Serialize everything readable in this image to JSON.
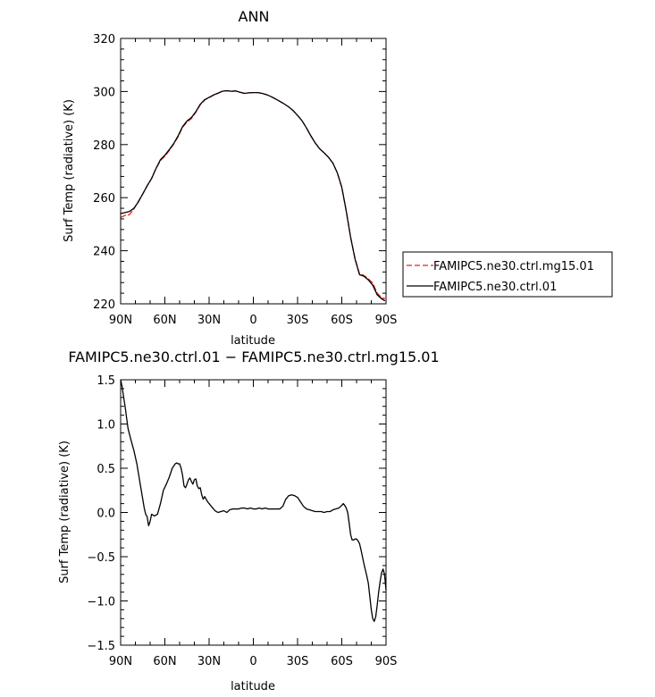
{
  "chart_data": [
    {
      "type": "line",
      "title": "ANN",
      "xlabel": "latitude",
      "ylabel": "Surf Temp (radiative) (K)",
      "xlim": [
        90,
        -90
      ],
      "ylim": [
        220,
        320
      ],
      "xticks": [
        90,
        60,
        30,
        0,
        -30,
        -60,
        -90
      ],
      "xticklabels": [
        "90N",
        "60N",
        "30N",
        "0",
        "30S",
        "60S",
        "90S"
      ],
      "yticks": [
        220,
        240,
        260,
        280,
        300,
        320
      ],
      "yticklabels": [
        "220",
        "240",
        "260",
        "280",
        "300",
        "320"
      ],
      "legend_position": "right",
      "series": [
        {
          "name": "FAMIPC5.ne30.ctrl.mg15.01",
          "color": "#e8201e",
          "dash": "dashed",
          "x": [
            90,
            87,
            84,
            81,
            78,
            75,
            72,
            69,
            66,
            63,
            60,
            57,
            54,
            51,
            48,
            45,
            42,
            39,
            36,
            33,
            30,
            27,
            24,
            21,
            18,
            15,
            12,
            9,
            6,
            3,
            0,
            -3,
            -6,
            -9,
            -12,
            -15,
            -18,
            -21,
            -24,
            -27,
            -30,
            -33,
            -36,
            -39,
            -42,
            -45,
            -48,
            -51,
            -54,
            -57,
            -60,
            -63,
            -66,
            -69,
            -72,
            -75,
            -78,
            -81,
            -84,
            -87,
            -89
          ],
          "y": [
            252.5,
            253.3,
            253.6,
            255.8,
            258.6,
            261.4,
            264.4,
            267.3,
            271.0,
            274.0,
            275.6,
            277.8,
            280.2,
            283.0,
            286.5,
            288.5,
            289.8,
            292.2,
            295.0,
            296.8,
            297.7,
            298.6,
            299.3,
            300.1,
            300.3,
            300.1,
            300.2,
            299.7,
            299.3,
            299.5,
            299.6,
            299.6,
            299.3,
            298.8,
            298.1,
            297.2,
            296.3,
            295.3,
            294.2,
            292.8,
            291.0,
            289.0,
            286.3,
            283.3,
            280.6,
            278.4,
            276.9,
            275.2,
            273.0,
            269.3,
            263.8,
            255.0,
            245.1,
            237.0,
            231.3,
            230.7,
            229.4,
            227.8,
            224.0,
            222.3,
            222.0
          ]
        },
        {
          "name": "FAMIPC5.ne30.ctrl.01",
          "color": "#000000",
          "dash": "solid",
          "x": [
            90,
            87,
            84,
            81,
            78,
            75,
            72,
            69,
            66,
            63,
            60,
            57,
            54,
            51,
            48,
            45,
            42,
            39,
            36,
            33,
            30,
            27,
            24,
            21,
            18,
            15,
            12,
            9,
            6,
            3,
            0,
            -3,
            -6,
            -9,
            -12,
            -15,
            -18,
            -21,
            -24,
            -27,
            -30,
            -33,
            -36,
            -39,
            -42,
            -45,
            -48,
            -51,
            -54,
            -57,
            -60,
            -63,
            -66,
            -69,
            -72,
            -75,
            -78,
            -81,
            -84,
            -87,
            -89
          ],
          "y": [
            254.0,
            254.4,
            254.8,
            256.0,
            258.4,
            261.4,
            264.5,
            267.2,
            271.0,
            274.3,
            276.0,
            278.1,
            280.4,
            283.3,
            286.8,
            288.9,
            290.2,
            292.4,
            295.2,
            296.9,
            297.8,
            298.7,
            299.4,
            300.1,
            300.3,
            300.1,
            300.2,
            299.7,
            299.3,
            299.5,
            299.6,
            299.6,
            299.3,
            298.8,
            298.1,
            297.2,
            296.3,
            295.3,
            294.2,
            292.8,
            291.0,
            289.0,
            286.3,
            283.3,
            280.6,
            278.4,
            276.9,
            275.2,
            273.0,
            269.3,
            263.9,
            255.0,
            245.0,
            236.8,
            231.0,
            230.4,
            229.0,
            227.0,
            223.4,
            221.9,
            221.2
          ]
        }
      ]
    },
    {
      "type": "line",
      "title": "FAMIPC5.ne30.ctrl.01 − FAMIPC5.ne30.ctrl.mg15.01",
      "xlabel": "latitude",
      "ylabel": "Surf Temp (radiative) (K)",
      "xlim": [
        90,
        -90
      ],
      "ylim": [
        -1.5,
        1.5
      ],
      "xticks": [
        90,
        60,
        30,
        0,
        -30,
        -60,
        -90
      ],
      "xticklabels": [
        "90N",
        "60N",
        "30N",
        "0",
        "30S",
        "60S",
        "90S"
      ],
      "yticks": [
        1.5,
        1.0,
        0.5,
        0.0,
        -0.5,
        -1.0,
        -1.5
      ],
      "yticklabels": [
        "1.5",
        "1.0",
        "0.5",
        "0.0",
        "−0.5",
        "−1.0",
        "−1.5"
      ],
      "series": [
        {
          "color": "#000000",
          "dash": "solid",
          "x": [
            90,
            89,
            87,
            85,
            83,
            81,
            79,
            78,
            77,
            76,
            75,
            74,
            73,
            72,
            71,
            70,
            69,
            68,
            67,
            65,
            63,
            61,
            59,
            57,
            55,
            53,
            52,
            51,
            50,
            49,
            48,
            47,
            46,
            45,
            44,
            43,
            42,
            41,
            40,
            39,
            38,
            37,
            36,
            35,
            34,
            33,
            32,
            31,
            30,
            28,
            26,
            24,
            22,
            20,
            18,
            16,
            14,
            12,
            10,
            8,
            6,
            4,
            2,
            0,
            -2,
            -4,
            -6,
            -8,
            -10,
            -12,
            -14,
            -16,
            -18,
            -20,
            -22,
            -24,
            -26,
            -28,
            -30,
            -32,
            -34,
            -36,
            -38,
            -40,
            -42,
            -44,
            -46,
            -48,
            -50,
            -52,
            -54,
            -56,
            -58,
            -60,
            -61,
            -62,
            -63,
            -64,
            -65,
            -66,
            -67,
            -68,
            -69,
            -70,
            -71,
            -72,
            -73,
            -74,
            -75,
            -76,
            -77,
            -78,
            -79,
            -80,
            -81,
            -82,
            -83,
            -84,
            -85,
            -86,
            -87,
            -88,
            -89,
            -90
          ],
          "y": [
            1.5,
            1.42,
            1.2,
            0.95,
            0.82,
            0.7,
            0.55,
            0.45,
            0.35,
            0.25,
            0.15,
            0.05,
            -0.02,
            -0.05,
            -0.15,
            -0.1,
            -0.02,
            -0.03,
            -0.04,
            -0.02,
            0.1,
            0.25,
            0.32,
            0.4,
            0.5,
            0.55,
            0.56,
            0.55,
            0.55,
            0.5,
            0.42,
            0.3,
            0.28,
            0.32,
            0.37,
            0.39,
            0.35,
            0.32,
            0.37,
            0.38,
            0.3,
            0.27,
            0.28,
            0.2,
            0.15,
            0.18,
            0.15,
            0.12,
            0.1,
            0.06,
            0.02,
            0.0,
            0.01,
            0.02,
            0.0,
            0.03,
            0.04,
            0.04,
            0.04,
            0.05,
            0.05,
            0.04,
            0.05,
            0.04,
            0.04,
            0.05,
            0.04,
            0.05,
            0.04,
            0.04,
            0.04,
            0.04,
            0.04,
            0.07,
            0.15,
            0.19,
            0.2,
            0.19,
            0.17,
            0.12,
            0.07,
            0.04,
            0.03,
            0.02,
            0.01,
            0.01,
            0.01,
            0.0,
            0.01,
            0.01,
            0.03,
            0.04,
            0.05,
            0.08,
            0.1,
            0.08,
            0.05,
            0.0,
            -0.12,
            -0.25,
            -0.31,
            -0.31,
            -0.3,
            -0.3,
            -0.32,
            -0.35,
            -0.42,
            -0.5,
            -0.58,
            -0.65,
            -0.72,
            -0.8,
            -0.95,
            -1.1,
            -1.2,
            -1.23,
            -1.18,
            -1.05,
            -0.9,
            -0.78,
            -0.68,
            -0.64,
            -0.7,
            -0.88
          ]
        }
      ]
    }
  ]
}
